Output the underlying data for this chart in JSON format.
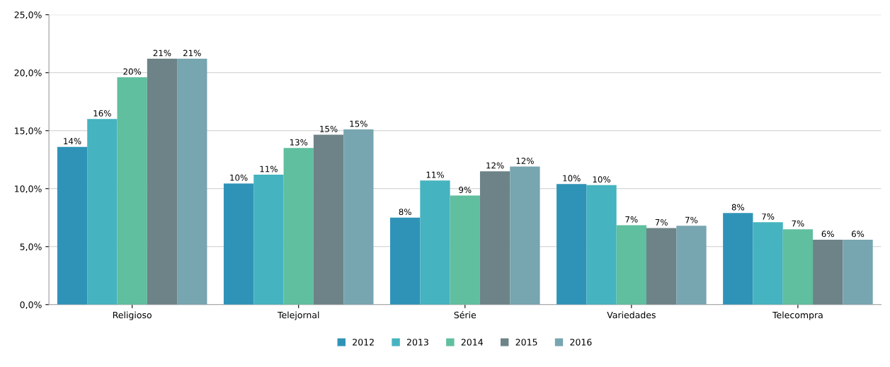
{
  "chart_data": {
    "type": "bar",
    "categories": [
      "Religioso",
      "Telejornal",
      "Série",
      "Variedades",
      "Telecompra"
    ],
    "series": [
      {
        "name": "2012",
        "color": "#2f93b8",
        "values": [
          13.6,
          10.45,
          7.5,
          10.4,
          7.9
        ],
        "value_labels": [
          "14%",
          "10%",
          "8%",
          "10%",
          "8%"
        ]
      },
      {
        "name": "2013",
        "color": "#45b3c0",
        "values": [
          16.0,
          11.2,
          10.7,
          10.3,
          7.1
        ],
        "value_labels": [
          "16%",
          "11%",
          "11%",
          "10%",
          "7%"
        ]
      },
      {
        "name": "2014",
        "color": "#5fbf9f",
        "values": [
          19.6,
          13.5,
          9.4,
          6.85,
          6.5
        ],
        "value_labels": [
          "20%",
          "13%",
          "9%",
          "7%",
          "7%"
        ]
      },
      {
        "name": "2015",
        "color": "#6e8387",
        "values": [
          21.2,
          14.65,
          11.5,
          6.6,
          5.6
        ],
        "value_labels": [
          "21%",
          "15%",
          "12%",
          "7%",
          "6%"
        ]
      },
      {
        "name": "2016",
        "color": "#77a5b0",
        "values": [
          21.2,
          15.1,
          11.9,
          6.8,
          5.6
        ],
        "value_labels": [
          "21%",
          "15%",
          "12%",
          "7%",
          "6%"
        ]
      }
    ],
    "ylim": [
      0,
      25
    ],
    "yticks": [
      {
        "value": 0,
        "label": "0,0%"
      },
      {
        "value": 5,
        "label": "5,0%"
      },
      {
        "value": 10,
        "label": "10,0%"
      },
      {
        "value": 15,
        "label": "15,0%"
      },
      {
        "value": 20,
        "label": "20,0%"
      },
      {
        "value": 25,
        "label": "25,0%"
      }
    ],
    "grid": "y",
    "legend": "bottom"
  }
}
